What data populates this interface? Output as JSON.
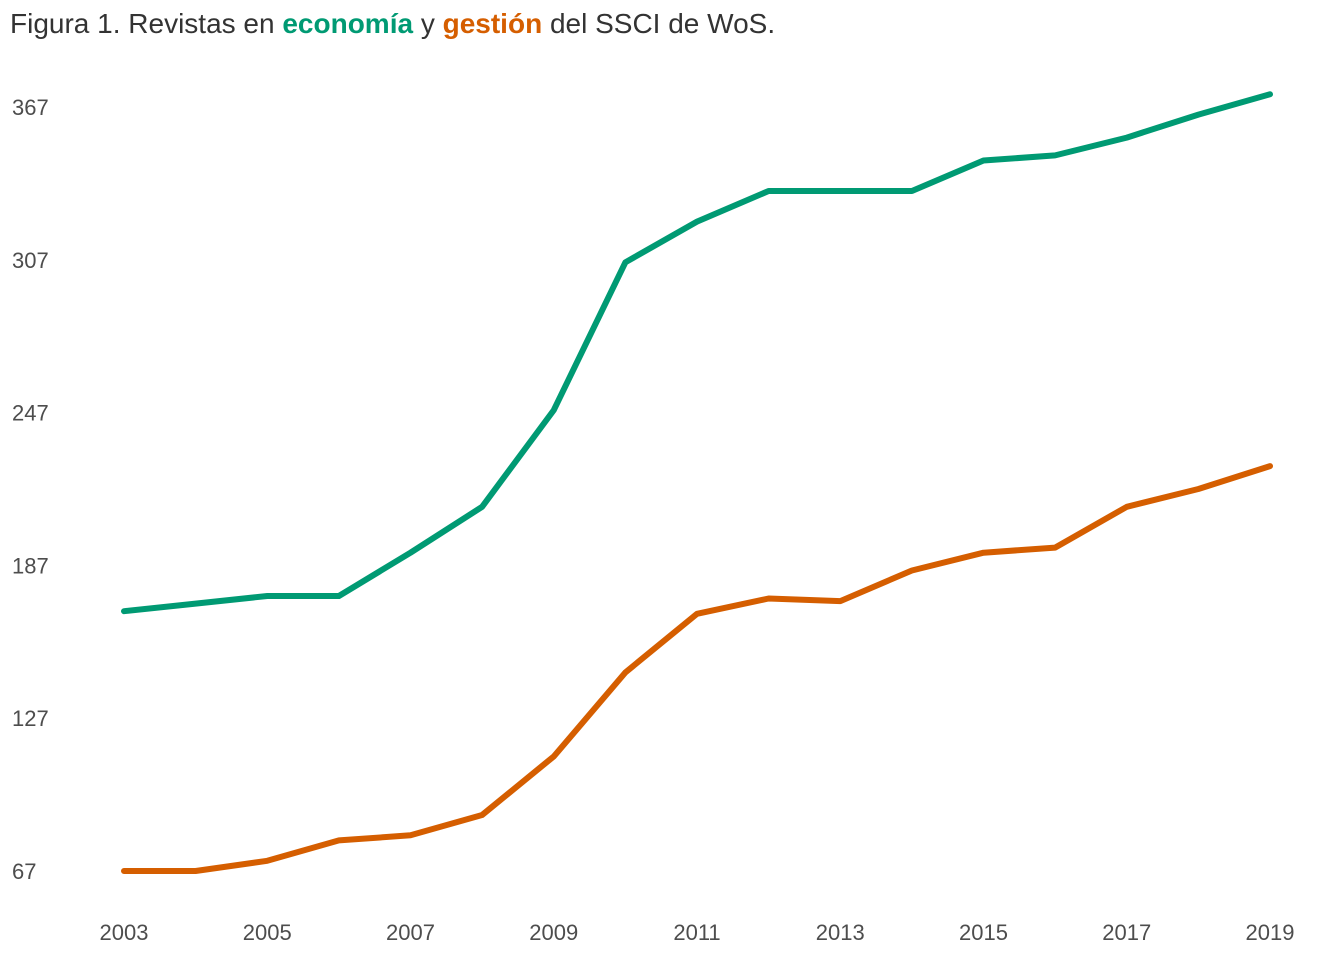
{
  "chart_data": {
    "type": "line",
    "title_parts": {
      "prefix": "Figura 1. Revistas en ",
      "economia": "economía",
      "conj": " y ",
      "gestion": "gestión",
      "suffix": " del SSCI de WoS."
    },
    "xlabel": "",
    "ylabel": "",
    "x": [
      2003,
      2004,
      2005,
      2006,
      2007,
      2008,
      2009,
      2010,
      2011,
      2012,
      2013,
      2014,
      2015,
      2016,
      2017,
      2018,
      2019
    ],
    "xticks": [
      2003,
      2005,
      2007,
      2009,
      2011,
      2013,
      2015,
      2017,
      2019
    ],
    "yticks": [
      67,
      127,
      187,
      247,
      307,
      367
    ],
    "xlim": [
      2003,
      2019
    ],
    "ylim": [
      67,
      367
    ],
    "grid": false,
    "legend": "none",
    "series": [
      {
        "key": "economia",
        "color": "#009a73",
        "values": [
          169,
          172,
          175,
          175,
          192,
          210,
          248,
          306,
          322,
          334,
          334,
          334,
          346,
          348,
          355,
          364,
          372
        ]
      },
      {
        "key": "gestion",
        "color": "#d55e00",
        "values": [
          67,
          67,
          71,
          79,
          81,
          89,
          112,
          145,
          168,
          174,
          173,
          185,
          192,
          194,
          210,
          217,
          226
        ]
      }
    ]
  }
}
